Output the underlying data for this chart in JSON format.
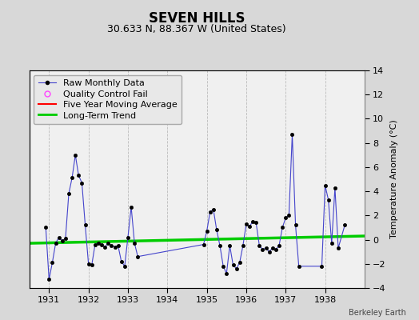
{
  "title": "SEVEN HILLS",
  "subtitle": "30.633 N, 88.367 W (United States)",
  "credit": "Berkeley Earth",
  "ylabel_right": "Temperature Anomaly (°C)",
  "ylim": [
    -4,
    14
  ],
  "yticks": [
    -4,
    -2,
    0,
    2,
    4,
    6,
    8,
    10,
    12,
    14
  ],
  "xlim": [
    1930.5,
    1939.0
  ],
  "xticks": [
    1931,
    1932,
    1933,
    1934,
    1935,
    1936,
    1937,
    1938
  ],
  "background_color": "#d8d8d8",
  "plot_background": "#f0f0f0",
  "raw_data_x": [
    1930.917,
    1931.0,
    1931.083,
    1931.167,
    1931.25,
    1931.333,
    1931.417,
    1931.5,
    1931.583,
    1931.667,
    1931.75,
    1931.833,
    1931.917,
    1932.0,
    1932.083,
    1932.167,
    1932.25,
    1932.333,
    1932.417,
    1932.5,
    1932.583,
    1932.667,
    1932.75,
    1932.833,
    1932.917,
    1933.0,
    1933.083,
    1933.167,
    1933.25,
    1934.917,
    1935.0,
    1935.083,
    1935.167,
    1935.25,
    1935.333,
    1935.417,
    1935.5,
    1935.583,
    1935.667,
    1935.75,
    1935.833,
    1935.917,
    1936.0,
    1936.083,
    1936.167,
    1936.25,
    1936.333,
    1936.417,
    1936.5,
    1936.583,
    1936.667,
    1936.75,
    1936.833,
    1936.917,
    1937.0,
    1937.083,
    1937.167,
    1937.25,
    1937.333,
    1937.917,
    1938.0,
    1938.083,
    1938.167,
    1938.25,
    1938.333,
    1938.5
  ],
  "raw_data_y": [
    1.0,
    -3.3,
    -1.9,
    -0.3,
    0.2,
    -0.1,
    0.1,
    3.8,
    5.1,
    7.0,
    5.3,
    4.7,
    1.2,
    -2.0,
    -2.1,
    -0.4,
    -0.3,
    -0.4,
    -0.6,
    -0.3,
    -0.5,
    -0.6,
    -0.5,
    -1.8,
    -2.2,
    0.2,
    2.7,
    -0.3,
    -1.4,
    -0.4,
    0.7,
    2.3,
    2.5,
    0.8,
    -0.5,
    -2.2,
    -2.8,
    -0.5,
    -2.1,
    -2.4,
    -1.9,
    -0.5,
    1.3,
    1.1,
    1.5,
    1.4,
    -0.5,
    -0.8,
    -0.7,
    -1.0,
    -0.7,
    -0.8,
    -0.5,
    1.0,
    1.8,
    2.0,
    8.7,
    1.2,
    -2.2,
    -2.2,
    4.5,
    3.3,
    -0.3,
    4.3,
    -0.7,
    1.2
  ],
  "trend_x": [
    1930.5,
    1939.0
  ],
  "trend_y": [
    -0.3,
    0.3
  ],
  "raw_line_color": "#4444cc",
  "raw_marker_color": "#000000",
  "raw_marker_size": 3,
  "trend_color": "#00cc00",
  "moving_avg_color": "#ff0000",
  "qc_color": "#ff44ff",
  "grid_color": "#bbbbbb",
  "grid_style": "--",
  "title_fontsize": 12,
  "subtitle_fontsize": 9,
  "legend_fontsize": 8,
  "tick_fontsize": 8,
  "ylabel_fontsize": 8
}
